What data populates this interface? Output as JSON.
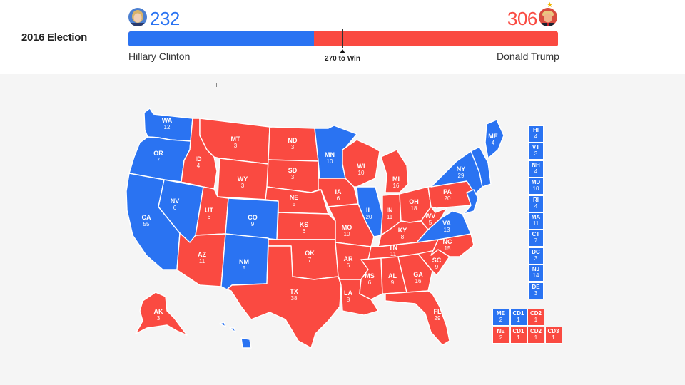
{
  "title": "2016 Election",
  "colors": {
    "dem": "#2a73f2",
    "rep": "#fa4a41"
  },
  "threshold_label": "270 to Win",
  "candidates": {
    "dem": {
      "name": "Hillary Clinton",
      "votes": "232",
      "avatar_icon": "candidate-portrait-icon"
    },
    "rep": {
      "name": "Donald Trump",
      "votes": "306",
      "avatar_icon": "candidate-portrait-icon",
      "winner_icon": "star-icon"
    }
  },
  "bar": {
    "dem_votes": 232,
    "rep_votes": 306,
    "total": 538,
    "threshold": 270
  },
  "states": [
    {
      "id": "WA",
      "ev": "12",
      "party": "dem"
    },
    {
      "id": "OR",
      "ev": "7",
      "party": "dem"
    },
    {
      "id": "CA",
      "ev": "55",
      "party": "dem"
    },
    {
      "id": "NV",
      "ev": "6",
      "party": "dem"
    },
    {
      "id": "ID",
      "ev": "4",
      "party": "rep"
    },
    {
      "id": "MT",
      "ev": "3",
      "party": "rep"
    },
    {
      "id": "WY",
      "ev": "3",
      "party": "rep"
    },
    {
      "id": "UT",
      "ev": "6",
      "party": "rep"
    },
    {
      "id": "AZ",
      "ev": "11",
      "party": "rep"
    },
    {
      "id": "CO",
      "ev": "9",
      "party": "dem"
    },
    {
      "id": "NM",
      "ev": "5",
      "party": "dem"
    },
    {
      "id": "ND",
      "ev": "3",
      "party": "rep"
    },
    {
      "id": "SD",
      "ev": "3",
      "party": "rep"
    },
    {
      "id": "NE",
      "ev": "5",
      "party": "rep"
    },
    {
      "id": "KS",
      "ev": "6",
      "party": "rep"
    },
    {
      "id": "OK",
      "ev": "7",
      "party": "rep"
    },
    {
      "id": "TX",
      "ev": "38",
      "party": "rep"
    },
    {
      "id": "MN",
      "ev": "10",
      "party": "dem"
    },
    {
      "id": "IA",
      "ev": "6",
      "party": "rep"
    },
    {
      "id": "MO",
      "ev": "10",
      "party": "rep"
    },
    {
      "id": "AR",
      "ev": "6",
      "party": "rep"
    },
    {
      "id": "LA",
      "ev": "8",
      "party": "rep"
    },
    {
      "id": "WI",
      "ev": "10",
      "party": "rep"
    },
    {
      "id": "IL",
      "ev": "20",
      "party": "dem"
    },
    {
      "id": "MI",
      "ev": "16",
      "party": "rep"
    },
    {
      "id": "IN",
      "ev": "11",
      "party": "rep"
    },
    {
      "id": "OH",
      "ev": "18",
      "party": "rep"
    },
    {
      "id": "KY",
      "ev": "8",
      "party": "rep"
    },
    {
      "id": "TN",
      "ev": "11",
      "party": "rep"
    },
    {
      "id": "MS",
      "ev": "6",
      "party": "rep"
    },
    {
      "id": "AL",
      "ev": "9",
      "party": "rep"
    },
    {
      "id": "GA",
      "ev": "16",
      "party": "rep"
    },
    {
      "id": "FL",
      "ev": "29",
      "party": "rep"
    },
    {
      "id": "SC",
      "ev": "9",
      "party": "rep"
    },
    {
      "id": "NC",
      "ev": "15",
      "party": "rep"
    },
    {
      "id": "VA",
      "ev": "13",
      "party": "dem"
    },
    {
      "id": "WV",
      "ev": "5",
      "party": "rep"
    },
    {
      "id": "PA",
      "ev": "20",
      "party": "rep"
    },
    {
      "id": "NY",
      "ev": "29",
      "party": "dem"
    },
    {
      "id": "ME",
      "ev": "4",
      "party": "dem"
    },
    {
      "id": "AK",
      "ev": "3",
      "party": "rep"
    }
  ],
  "small_states": [
    {
      "id": "HI",
      "ev": "4",
      "party": "dem"
    },
    {
      "id": "VT",
      "ev": "3",
      "party": "dem"
    },
    {
      "id": "NH",
      "ev": "4",
      "party": "dem"
    },
    {
      "id": "MD",
      "ev": "10",
      "party": "dem"
    },
    {
      "id": "RI",
      "ev": "4",
      "party": "dem"
    },
    {
      "id": "MA",
      "ev": "11",
      "party": "dem"
    },
    {
      "id": "CT",
      "ev": "7",
      "party": "dem"
    },
    {
      "id": "DC",
      "ev": "3",
      "party": "dem"
    },
    {
      "id": "NJ",
      "ev": "14",
      "party": "dem"
    },
    {
      "id": "DE",
      "ev": "3",
      "party": "dem"
    }
  ],
  "districts": {
    "me": [
      {
        "id": "ME",
        "ev": "2",
        "party": "dem"
      },
      {
        "id": "CD1",
        "ev": "1",
        "party": "dem"
      },
      {
        "id": "CD2",
        "ev": "1",
        "party": "rep"
      }
    ],
    "ne": [
      {
        "id": "NE",
        "ev": "2",
        "party": "rep"
      },
      {
        "id": "CD1",
        "ev": "1",
        "party": "rep"
      },
      {
        "id": "CD2",
        "ev": "1",
        "party": "rep"
      },
      {
        "id": "CD3",
        "ev": "1",
        "party": "rep"
      }
    ]
  }
}
